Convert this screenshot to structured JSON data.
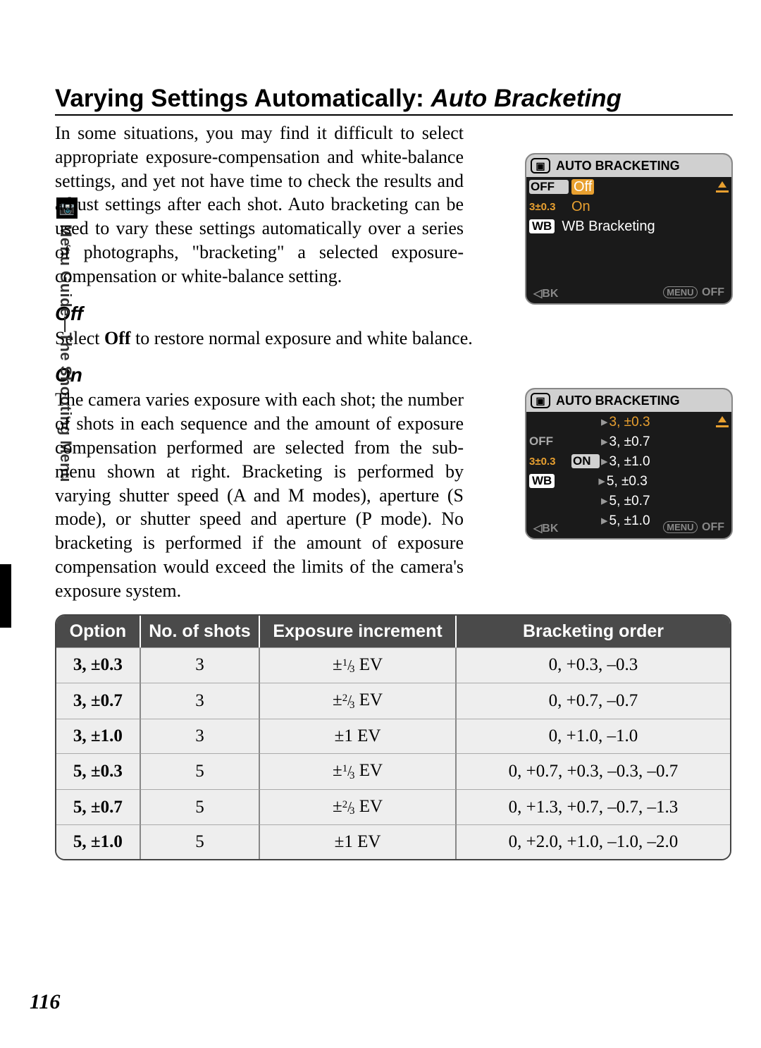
{
  "sideTab": {
    "icon": "📷",
    "text": "Menu Guide—The Shooting Menu"
  },
  "title": {
    "main": "Varying Settings Automatically: ",
    "italic": "Auto Bracketing"
  },
  "intro": "In some situations, you may find it difficult to select appropriate exposure-compensation and white-balance settings, and yet not have time to check the results and adjust settings after each shot.  Auto bracketing can be used to vary these settings automatically over a series of photographs, \"bracketing\" a selected exposure-compensation or white-balance setting.",
  "off": {
    "heading": "Off",
    "text_pre": "Select ",
    "text_bold": "Off",
    "text_post": " to restore normal exposure and white balance."
  },
  "on": {
    "heading": "On",
    "text": "The camera varies exposure with each shot; the number of shots in each sequence and the amount of exposure compensation performed are selected from the sub-menu shown at right.  Bracketing is performed by varying shutter speed (A and M modes), aperture (S mode), or shutter speed and aperture (P mode).  No bracketing is performed if the amount of exposure compensation would exceed the limits of the camera's exposure system."
  },
  "lcd1": {
    "title": "AUTO BRACKETING",
    "rows": [
      {
        "left": "OFF",
        "label": "Off",
        "leftBoxed": true,
        "pointer": true
      },
      {
        "left": "3±0.3",
        "label": "On",
        "leftBoxed": false
      },
      {
        "left": "WB",
        "label": "WB Bracketing",
        "wb": true
      }
    ],
    "footer": {
      "bk": "◁BK",
      "menu": "MENU",
      "off": "OFF"
    }
  },
  "lcd2": {
    "title": "AUTO BRACKETING",
    "vals": [
      "3,  ±0.3",
      "3,  ±0.7",
      "3,  ±1.0",
      "5,  ±0.3",
      "5,  ±0.7",
      "5,  ±1.0"
    ],
    "lefts": [
      "OFF",
      "3±0.3",
      "WB"
    ],
    "on": "ON",
    "footer": {
      "bk": "◁BK",
      "menu": "MENU",
      "off": "OFF"
    }
  },
  "table": {
    "headers": [
      "Option",
      "No. of shots",
      "Exposure increment",
      "Bracketing order"
    ],
    "rows": [
      {
        "opt": "3, ±0.3",
        "shots": "3",
        "inc_pre": "±",
        "inc_num": "1",
        "inc_den": "3",
        "inc_suf": " EV",
        "order": "0, +0.3, –0.3"
      },
      {
        "opt": "3, ±0.7",
        "shots": "3",
        "inc_pre": "±",
        "inc_num": "2",
        "inc_den": "3",
        "inc_suf": " EV",
        "order": "0, +0.7, –0.7"
      },
      {
        "opt": "3, ±1.0",
        "shots": "3",
        "inc_plain": "±1 EV",
        "order": "0, +1.0, –1.0"
      },
      {
        "opt": "5, ±0.3",
        "shots": "5",
        "inc_pre": "±",
        "inc_num": "1",
        "inc_den": "3",
        "inc_suf": " EV",
        "order": "0, +0.7, +0.3, –0.3, –0.7"
      },
      {
        "opt": "5, ±0.7",
        "shots": "5",
        "inc_pre": "±",
        "inc_num": "2",
        "inc_den": "3",
        "inc_suf": " EV",
        "order": "0, +1.3, +0.7, –0.7, –1.3"
      },
      {
        "opt": "5, ±1.0",
        "shots": "5",
        "inc_plain": "±1 EV",
        "order": "0, +2.0, +1.0, –1.0, –2.0"
      }
    ]
  },
  "pageNumber": "116"
}
